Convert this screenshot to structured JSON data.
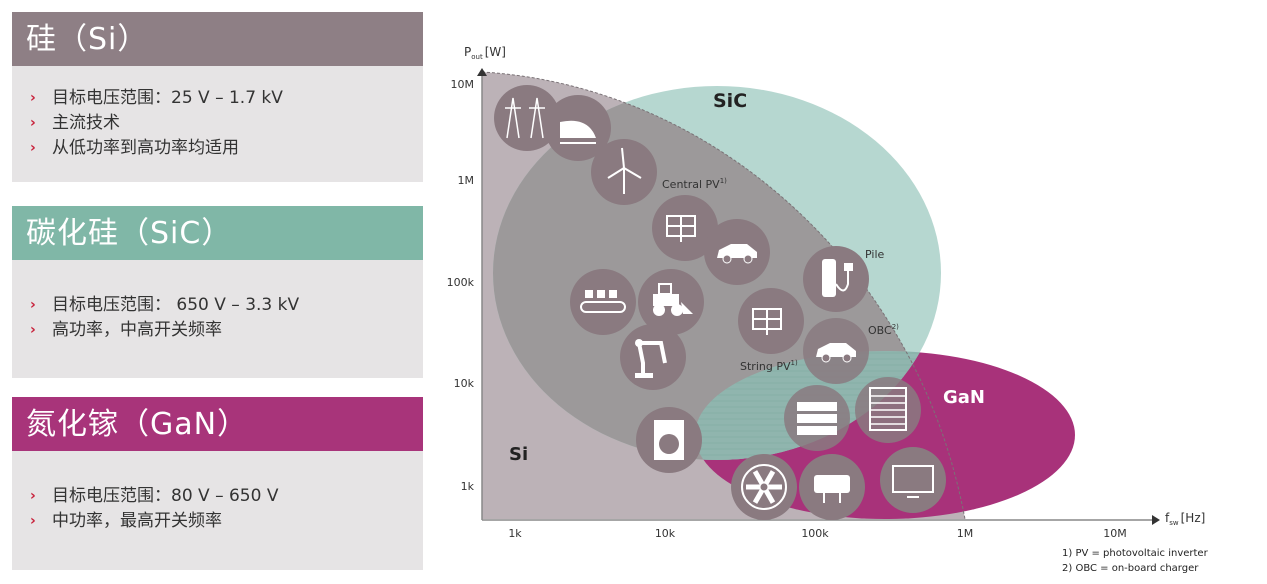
{
  "cards": [
    {
      "title": "硅（Si）",
      "color": "#8e7f85",
      "items": [
        "目标电压范围：25 V – 1.7 kV",
        "主流技术",
        "从低功率到高功率均适用"
      ]
    },
    {
      "title": "碳化硅（SiC）",
      "color": "#80b7a7",
      "items": [
        "目标电压范围： 650 V – 3.3 kV",
        "高功率，中高开关频率"
      ]
    },
    {
      "title": "氮化镓（GaN）",
      "color": "#a8347a",
      "items": [
        "目标电压范围：80 V – 650 V",
        "中功率，最高开关频率"
      ]
    }
  ],
  "diagram": {
    "y_axis": {
      "label": "P",
      "label_sub": "out",
      "unit": "[W]",
      "ticks": [
        "10M",
        "1M",
        "100k",
        "10k",
        "1k"
      ]
    },
    "x_axis": {
      "label": "f",
      "label_sub": "sw",
      "unit": "[Hz]",
      "ticks": [
        "1k",
        "10k",
        "100k",
        "1M",
        "10M"
      ]
    },
    "regions": {
      "si": "Si",
      "sic": "SiC",
      "gan": "GaN"
    },
    "region_colors": {
      "si": "#bcb2b7",
      "sic": "#a9d0c8",
      "gan": "#a8327a",
      "icon": "#8a7a80"
    },
    "labels": {
      "central_pv": "Central PV",
      "central_pv_note": "1)",
      "pile": "Pile",
      "obc": "OBC",
      "obc_note": "2)",
      "string_pv": "String PV",
      "string_pv_note": "1)"
    },
    "icons": [
      "transmission-tower",
      "high-speed-train",
      "wind-turbine",
      "solar-panel",
      "electric-car",
      "conveyor-belt",
      "wheel-loader",
      "robot-arm",
      "solar-panel",
      "charging-pile",
      "onboard-charger-car",
      "washing-machine",
      "server",
      "server-rack",
      "fan",
      "power-adapter",
      "tv"
    ],
    "footnotes": [
      "1) PV = photovoltaic inverter",
      "2) OBC = on-board charger"
    ]
  }
}
